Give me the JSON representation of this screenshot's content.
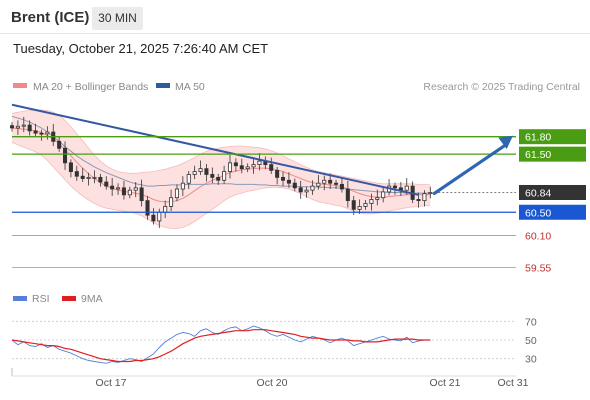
{
  "header": {
    "symbol": "Brent (ICE)",
    "interval": "30 MIN"
  },
  "timestamp": "Tuesday, October 21, 2025 7:26:40 AM CET",
  "colors": {
    "bollinger": "#f08a8a",
    "bollinger_fill": "#fde0e0",
    "ma50": "#2f5a9e",
    "resistance": "#4a9d12",
    "support": "#1a57d3",
    "stop": "#ee8a8a",
    "price_badge": "#333333",
    "rsi": "#5580d8",
    "rsi_ma": "#e02020",
    "arrow": "#2f66b3",
    "trendline": "#3558a2"
  },
  "chart_data": [
    {
      "type": "candlestick",
      "legend": [
        {
          "label": "MA 20 + Bollinger Bands",
          "color": "#f08a8a"
        },
        {
          "label": "MA 50",
          "color": "#2f5a9e"
        }
      ],
      "legend_position": "top-left",
      "credit": "Research © 2025 Trading Central",
      "x_labels": [
        "Oct 17",
        "Oct 20",
        "Oct 21",
        "Oct 31"
      ],
      "y_range": [
        59.3,
        62.5
      ],
      "levels": [
        {
          "value": 61.8,
          "label": "61.80",
          "kind": "resistance"
        },
        {
          "value": 61.5,
          "label": "61.50",
          "kind": "resistance"
        },
        {
          "value": 60.84,
          "label": "60.84",
          "kind": "last"
        },
        {
          "value": 60.5,
          "label": "60.50",
          "kind": "support"
        },
        {
          "value": 60.1,
          "label": "60.10",
          "kind": "stop"
        },
        {
          "value": 59.55,
          "label": "59.55",
          "kind": "stop"
        }
      ],
      "trendline": {
        "from": 62.35,
        "to": 60.8
      },
      "forecast_target": 61.8,
      "series": [
        {
          "kind": "price",
          "values": [
            61.95,
            61.98,
            62.0,
            61.9,
            61.86,
            61.85,
            61.88,
            61.72,
            61.6,
            61.35,
            61.2,
            61.12,
            61.08,
            61.1,
            61.1,
            61.02,
            60.95,
            60.9,
            60.92,
            60.8,
            60.88,
            60.92,
            60.7,
            60.45,
            60.35,
            60.5,
            60.6,
            60.75,
            60.9,
            61.0,
            61.15,
            61.2,
            61.25,
            61.15,
            61.1,
            61.05,
            61.2,
            61.35,
            61.3,
            61.25,
            61.28,
            61.32,
            61.38,
            61.32,
            61.22,
            61.1,
            61.05,
            61.0,
            60.92,
            60.85,
            60.88,
            60.95,
            61.0,
            61.05,
            61.0,
            60.98,
            60.9,
            60.7,
            60.55,
            60.6,
            60.65,
            60.72,
            60.75,
            60.85,
            60.95,
            60.92,
            60.88,
            60.95,
            60.72,
            60.7,
            60.82,
            60.84
          ]
        },
        {
          "kind": "ma50",
          "values": [
            62.15,
            62.12,
            62.09,
            62.05,
            62.0,
            61.95,
            61.88,
            61.8,
            61.72,
            61.63,
            61.55,
            61.47,
            61.4,
            61.34,
            61.28,
            61.23,
            61.18,
            61.14,
            61.1,
            61.06,
            61.02,
            60.99,
            60.97,
            60.95,
            60.95,
            60.96,
            60.96,
            60.97,
            60.97,
            60.97,
            60.98,
            60.98,
            60.98,
            60.98,
            60.99,
            60.99,
            60.99,
            60.99,
            60.98,
            60.98,
            60.98,
            60.98,
            60.97,
            60.97,
            60.96,
            60.96,
            60.95,
            60.95,
            60.95,
            60.94,
            60.94,
            60.94,
            60.93,
            60.93,
            60.92,
            60.92,
            60.91,
            60.9,
            60.89,
            60.88,
            60.87,
            60.86,
            60.85,
            60.85,
            60.84,
            60.84,
            60.84,
            60.83,
            60.83,
            60.83,
            60.83,
            60.83
          ]
        },
        {
          "kind": "bollinger_mid",
          "values": [
            61.95,
            61.94,
            61.93,
            61.92,
            61.9,
            61.87,
            61.82,
            61.76,
            61.68,
            61.58,
            61.47,
            61.36,
            61.26,
            61.16,
            61.08,
            61.01,
            60.95,
            60.91,
            60.88,
            60.86,
            60.84,
            60.83,
            60.8,
            60.77,
            60.72,
            60.69,
            60.68,
            60.68,
            60.7,
            60.74,
            60.8,
            60.87,
            60.94,
            61.0,
            61.05,
            61.09,
            61.14,
            61.18,
            61.21,
            61.23,
            61.24,
            61.25,
            61.26,
            61.26,
            61.25,
            61.23,
            61.2,
            61.16,
            61.12,
            61.08,
            61.04,
            61.01,
            60.99,
            60.98,
            60.97,
            60.96,
            60.94,
            60.9,
            60.86,
            60.82,
            60.79,
            60.77,
            60.76,
            60.76,
            60.77,
            60.78,
            60.79,
            60.8,
            60.8,
            60.8,
            60.8,
            60.8
          ]
        },
        {
          "kind": "bollinger_upper",
          "values": [
            62.2,
            62.22,
            62.24,
            62.25,
            62.26,
            62.26,
            62.25,
            62.22,
            62.17,
            62.08,
            61.97,
            61.85,
            61.73,
            61.6,
            61.48,
            61.38,
            61.3,
            61.24,
            61.2,
            61.18,
            61.17,
            61.17,
            61.18,
            61.19,
            61.2,
            61.22,
            61.24,
            61.27,
            61.3,
            61.34,
            61.39,
            61.44,
            61.5,
            61.55,
            61.58,
            61.6,
            61.62,
            61.63,
            61.64,
            61.64,
            61.63,
            61.62,
            61.61,
            61.59,
            61.56,
            61.52,
            61.47,
            61.42,
            61.37,
            61.32,
            61.27,
            61.23,
            61.2,
            61.18,
            61.16,
            61.14,
            61.12,
            61.1,
            61.08,
            61.06,
            61.04,
            61.02,
            61.0,
            60.99,
            60.99,
            60.99,
            60.99,
            60.99,
            60.99,
            60.98,
            60.98,
            60.97
          ]
        },
        {
          "kind": "bollinger_lower",
          "values": [
            61.7,
            61.66,
            61.62,
            61.58,
            61.54,
            61.48,
            61.39,
            61.28,
            61.17,
            61.06,
            60.95,
            60.86,
            60.78,
            60.71,
            60.65,
            60.6,
            60.57,
            60.55,
            60.53,
            60.52,
            60.5,
            60.48,
            60.44,
            60.38,
            60.32,
            60.27,
            60.24,
            60.22,
            60.22,
            60.24,
            60.28,
            60.34,
            60.41,
            60.48,
            60.55,
            60.62,
            60.7,
            60.76,
            60.8,
            60.83,
            60.86,
            60.88,
            60.9,
            60.92,
            60.93,
            60.93,
            60.92,
            60.9,
            60.86,
            60.82,
            60.77,
            60.72,
            60.68,
            60.66,
            60.64,
            60.62,
            60.6,
            60.56,
            60.52,
            60.49,
            60.47,
            60.47,
            60.48,
            60.5,
            60.52,
            60.54,
            60.56,
            60.58,
            60.59,
            60.6,
            60.61,
            60.62
          ]
        }
      ]
    },
    {
      "type": "line",
      "legend": [
        {
          "label": "RSI",
          "color": "#5580d8"
        },
        {
          "label": "9MA",
          "color": "#e02020"
        }
      ],
      "legend_position": "top-left",
      "y_ticks": [
        70,
        50,
        30
      ],
      "y_range": [
        20,
        80
      ],
      "series": [
        {
          "name": "RSI",
          "values": [
            50,
            45,
            48,
            44,
            43,
            46,
            42,
            44,
            40,
            38,
            36,
            33,
            30,
            28,
            27,
            26,
            25,
            27,
            26,
            28,
            30,
            29,
            27,
            31,
            35,
            42,
            48,
            52,
            56,
            58,
            57,
            54,
            60,
            62,
            58,
            56,
            60,
            63,
            64,
            60,
            62,
            65,
            63,
            60,
            56,
            54,
            56,
            53,
            50,
            48,
            51,
            54,
            52,
            50,
            47,
            50,
            52,
            49,
            44,
            46,
            48,
            50,
            52,
            54,
            51,
            50,
            49,
            53,
            47,
            49,
            50,
            50
          ]
        },
        {
          "name": "9MA",
          "values": [
            50,
            49,
            48,
            47,
            46,
            45,
            44,
            44,
            43,
            41,
            40,
            38,
            36,
            34,
            32,
            30,
            29,
            28,
            27,
            27,
            27,
            28,
            28,
            29,
            30,
            32,
            35,
            38,
            42,
            46,
            49,
            52,
            54,
            55,
            56,
            57,
            58,
            59,
            60,
            60,
            60,
            61,
            61,
            61,
            60,
            59,
            58,
            57,
            56,
            54,
            53,
            52,
            52,
            51,
            50,
            50,
            50,
            50,
            49,
            49,
            48,
            48,
            48,
            49,
            50,
            51,
            51,
            51,
            51,
            50,
            50,
            50
          ]
        }
      ]
    }
  ]
}
